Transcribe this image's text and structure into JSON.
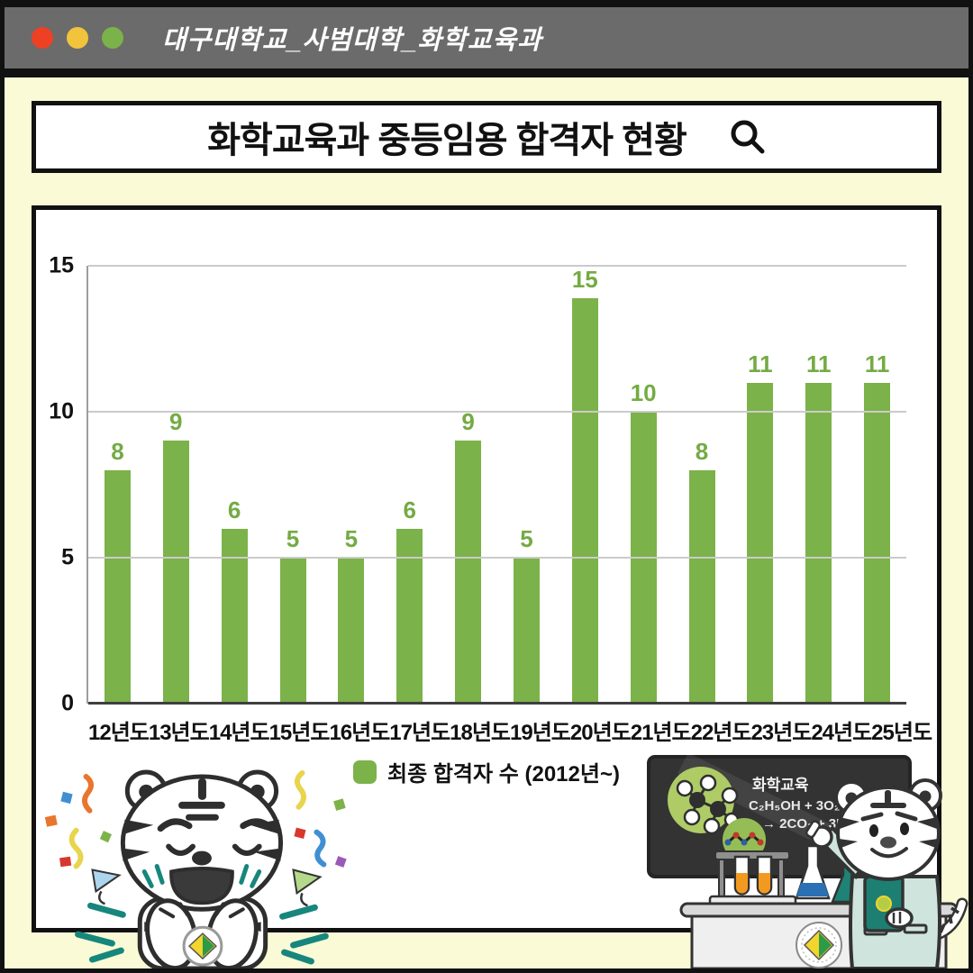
{
  "window": {
    "title": "대구대학교_사범대학_화학교육과",
    "dot_colors": [
      "#ee4023",
      "#f2c43c",
      "#7cb24a"
    ]
  },
  "search_box": {
    "title": "화학교육과 중등임용 합격자 현황"
  },
  "chart_data": {
    "type": "bar",
    "title": "화학교육과 중등임용 합격자 현황",
    "categories": [
      "12년도",
      "13년도",
      "14년도",
      "15년도",
      "16년도",
      "17년도",
      "18년도",
      "19년도",
      "20년도",
      "21년도",
      "22년도",
      "23년도",
      "24년도",
      "25년도"
    ],
    "values": [
      8,
      9,
      6,
      5,
      5,
      6,
      9,
      5,
      15,
      10,
      8,
      11,
      11,
      11
    ],
    "series_name": "최종 합격자 수 (2012년~)",
    "xlabel": "",
    "ylabel": "",
    "ylim": [
      0,
      15
    ],
    "yticks": [
      0,
      5,
      10,
      15
    ],
    "grid": true,
    "legend_position": "bottom",
    "bar_color": "#7cb24a",
    "value_label_color": "#74ab44"
  },
  "legend": {
    "label": "최종 합격자 수 (2012년~)",
    "swatch_color": "#7cb24a"
  },
  "blackboard": {
    "subject": "화학교육",
    "formula_line1": "C₂H₅OH + 3O₂",
    "formula_line2": "→ 2CO₂ + 3H₂O"
  },
  "colors": {
    "frame": "#111111",
    "titlebar": "#6b6b6b",
    "background": "#fafad6",
    "gridline": "#cbcbcb",
    "axis": "#3f3f3f",
    "teal_accent": "#17867c",
    "mint_coat": "#cfe4dd",
    "board": "#333333"
  }
}
